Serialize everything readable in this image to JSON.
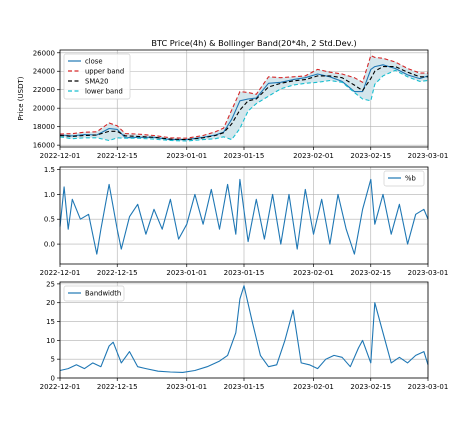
{
  "figure": {
    "title": "BTC Price(4h) & Bollinger Band(20*4h, 2 Std.Dev.)"
  },
  "colors": {
    "close": "#1f77b4",
    "upper": "#d62728",
    "sma": "#000000",
    "lower": "#17becf",
    "fill": "#cfe3ea",
    "grid": "#b0b0b0"
  },
  "x_ticks": [
    "2022-12-01",
    "2022-12-15",
    "2023-01-01",
    "2023-01-15",
    "2023-02-01",
    "2023-02-15",
    "2023-03-01"
  ],
  "chart_data": [
    {
      "type": "line",
      "title": "BTC Price(4h) & Bollinger Band(20*4h, 2 Std.Dev.)",
      "ylabel": "Price (USDT)",
      "xlim": [
        "2022-12-01",
        "2023-03-01"
      ],
      "ylim": [
        15800,
        26300
      ],
      "y_ticks": [
        16000,
        18000,
        20000,
        22000,
        24000,
        26000
      ],
      "grid": true,
      "legend": "upper-left",
      "x": [
        "2022-12-01",
        "2022-12-04",
        "2022-12-07",
        "2022-12-10",
        "2022-12-13",
        "2022-12-15",
        "2022-12-17",
        "2022-12-20",
        "2022-12-24",
        "2022-12-28",
        "2023-01-01",
        "2023-01-05",
        "2023-01-08",
        "2023-01-10",
        "2023-01-12",
        "2023-01-14",
        "2023-01-16",
        "2023-01-18",
        "2023-01-21",
        "2023-01-24",
        "2023-01-27",
        "2023-01-30",
        "2023-02-02",
        "2023-02-05",
        "2023-02-08",
        "2023-02-11",
        "2023-02-13",
        "2023-02-15",
        "2023-02-16",
        "2023-02-18",
        "2023-02-21",
        "2023-02-24",
        "2023-02-27",
        "2023-03-01"
      ],
      "series": [
        {
          "name": "close",
          "values": [
            17100,
            17000,
            17150,
            17100,
            17800,
            17700,
            16800,
            16850,
            16850,
            16600,
            16600,
            16850,
            17100,
            17400,
            18800,
            20800,
            21000,
            21100,
            22700,
            22800,
            23100,
            23300,
            23700,
            23400,
            22900,
            21800,
            21800,
            24200,
            24500,
            24700,
            24300,
            23600,
            23200,
            23500
          ]
        },
        {
          "name": "upper band",
          "values": [
            17200,
            17250,
            17400,
            17450,
            18400,
            18100,
            17250,
            17200,
            17050,
            16800,
            16750,
            17050,
            17450,
            17850,
            19800,
            21800,
            21700,
            21500,
            23400,
            23300,
            23400,
            23500,
            24200,
            23900,
            23700,
            23300,
            22800,
            25700,
            25500,
            25400,
            25000,
            24300,
            23800,
            23800
          ]
        },
        {
          "name": "SMA20",
          "values": [
            17050,
            16950,
            17050,
            17100,
            17500,
            17500,
            17000,
            16950,
            16850,
            16650,
            16600,
            16800,
            17050,
            17350,
            18300,
            19800,
            20800,
            21000,
            22300,
            22700,
            22950,
            23100,
            23500,
            23500,
            23300,
            22500,
            21900,
            23200,
            24000,
            24500,
            24500,
            23900,
            23400,
            23400
          ]
        },
        {
          "name": "lower band",
          "values": [
            16900,
            16700,
            16800,
            16800,
            16500,
            16800,
            16750,
            16750,
            16650,
            16500,
            16450,
            16600,
            16700,
            16900,
            16600,
            17800,
            19700,
            20500,
            21300,
            22100,
            22500,
            22700,
            22800,
            23000,
            22800,
            21700,
            21000,
            20800,
            22600,
            23500,
            24100,
            23400,
            22900,
            23000
          ]
        }
      ]
    },
    {
      "type": "line",
      "xlim": [
        "2022-12-01",
        "2023-03-01"
      ],
      "ylim": [
        -0.4,
        1.55
      ],
      "y_ticks": [
        0.0,
        0.5,
        1.0,
        1.5
      ],
      "grid": true,
      "legend": "upper-right",
      "x": [
        "2022-12-01",
        "2022-12-02",
        "2022-12-03",
        "2022-12-04",
        "2022-12-06",
        "2022-12-08",
        "2022-12-10",
        "2022-12-11",
        "2022-12-13",
        "2022-12-15",
        "2022-12-16",
        "2022-12-18",
        "2022-12-20",
        "2022-12-22",
        "2022-12-24",
        "2022-12-26",
        "2022-12-28",
        "2022-12-30",
        "2023-01-01",
        "2023-01-03",
        "2023-01-05",
        "2023-01-07",
        "2023-01-09",
        "2023-01-11",
        "2023-01-13",
        "2023-01-14",
        "2023-01-16",
        "2023-01-18",
        "2023-01-20",
        "2023-01-22",
        "2023-01-24",
        "2023-01-26",
        "2023-01-28",
        "2023-01-30",
        "2023-02-01",
        "2023-02-03",
        "2023-02-05",
        "2023-02-07",
        "2023-02-09",
        "2023-02-11",
        "2023-02-13",
        "2023-02-15",
        "2023-02-16",
        "2023-02-18",
        "2023-02-20",
        "2023-02-22",
        "2023-02-24",
        "2023-02-26",
        "2023-02-28",
        "2023-03-01"
      ],
      "series": [
        {
          "name": "%b",
          "values": [
            0.35,
            1.15,
            0.3,
            0.9,
            0.5,
            0.6,
            -0.2,
            0.3,
            1.2,
            0.3,
            -0.1,
            0.55,
            0.8,
            0.2,
            0.7,
            0.3,
            0.9,
            0.1,
            0.4,
            1.0,
            0.4,
            1.1,
            0.3,
            1.2,
            0.2,
            1.3,
            0.05,
            0.9,
            0.1,
            1.0,
            0.0,
            1.0,
            -0.1,
            1.1,
            0.2,
            0.9,
            0.0,
            1.0,
            0.3,
            -0.2,
            0.7,
            1.3,
            0.4,
            1.0,
            0.2,
            0.8,
            0.0,
            0.6,
            0.7,
            0.5
          ]
        }
      ]
    },
    {
      "type": "line",
      "xlim": [
        "2022-12-01",
        "2023-03-01"
      ],
      "ylim": [
        0,
        25.5
      ],
      "y_ticks": [
        0,
        5,
        10,
        15,
        20,
        25
      ],
      "grid": true,
      "legend": "upper-left",
      "x": [
        "2022-12-01",
        "2022-12-03",
        "2022-12-05",
        "2022-12-07",
        "2022-12-09",
        "2022-12-11",
        "2022-12-13",
        "2022-12-14",
        "2022-12-16",
        "2022-12-18",
        "2022-12-20",
        "2022-12-22",
        "2022-12-25",
        "2022-12-28",
        "2022-12-31",
        "2023-01-03",
        "2023-01-06",
        "2023-01-09",
        "2023-01-11",
        "2023-01-13",
        "2023-01-14",
        "2023-01-15",
        "2023-01-17",
        "2023-01-19",
        "2023-01-21",
        "2023-01-23",
        "2023-01-25",
        "2023-01-27",
        "2023-01-29",
        "2023-01-31",
        "2023-02-02",
        "2023-02-04",
        "2023-02-06",
        "2023-02-08",
        "2023-02-10",
        "2023-02-12",
        "2023-02-13",
        "2023-02-15",
        "2023-02-16",
        "2023-02-18",
        "2023-02-20",
        "2023-02-22",
        "2023-02-24",
        "2023-02-26",
        "2023-02-28",
        "2023-03-01"
      ],
      "series": [
        {
          "name": "Bandwidth",
          "values": [
            2.0,
            2.5,
            3.5,
            2.5,
            4.0,
            3.0,
            8.5,
            9.5,
            4.0,
            7.0,
            3.0,
            2.5,
            1.8,
            1.6,
            1.5,
            2.0,
            3.0,
            4.5,
            6.0,
            12.0,
            21.0,
            24.5,
            15.0,
            6.0,
            3.0,
            3.5,
            10.0,
            18.0,
            4.0,
            3.5,
            2.5,
            5.0,
            6.0,
            5.5,
            3.0,
            8.0,
            10.0,
            4.0,
            20.0,
            12.0,
            4.0,
            5.5,
            4.0,
            6.0,
            7.0,
            3.5
          ]
        }
      ]
    }
  ]
}
